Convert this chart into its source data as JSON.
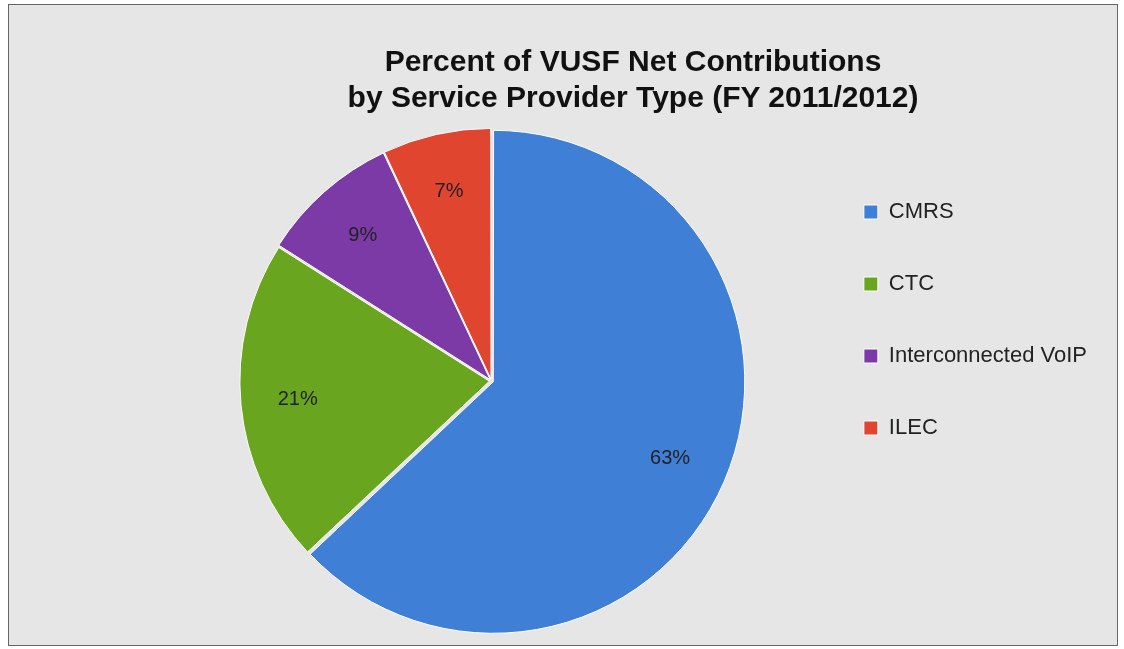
{
  "chart_data": {
    "type": "pie",
    "title": "Percent of VUSF Net Contributions\nby Service Provider Type (FY 2011/2012)",
    "categories": [
      "CMRS",
      "CTC",
      "Interconnected VoIP",
      "ILEC"
    ],
    "values": [
      63,
      21,
      9,
      7
    ],
    "value_labels": [
      "63%",
      "21%",
      "9%",
      "7%"
    ],
    "colors": [
      "#3f7fd6",
      "#6aa51f",
      "#7b3aa6",
      "#e0452f"
    ],
    "legend": "right"
  }
}
